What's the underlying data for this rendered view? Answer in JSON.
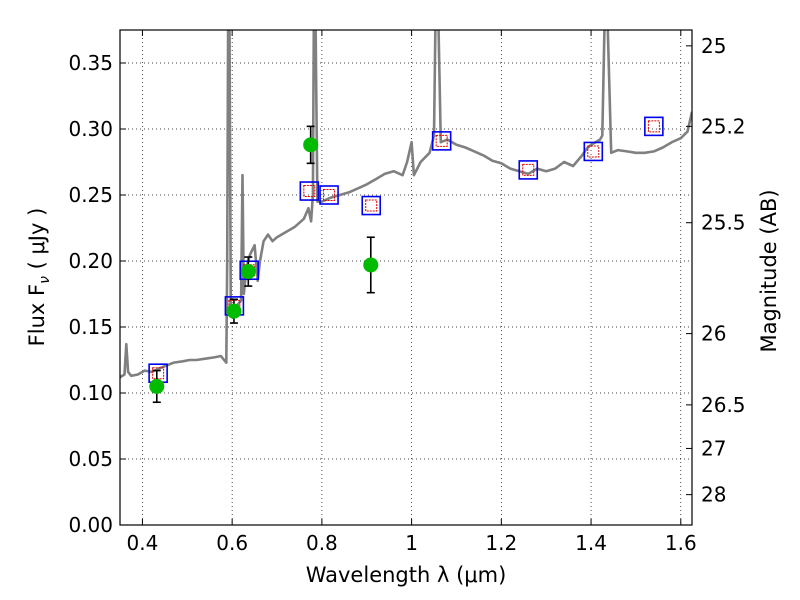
{
  "chart_data": {
    "type": "scatter",
    "xlabel": "Wavelength  λ (μm)",
    "ylabel": "Flux  F",
    "ylabel_sub": "ν",
    "ylabel_unit": "  ( μJy )",
    "ylabel_right": "Magnitude (AB)",
    "xlim": [
      0.35,
      1.625
    ],
    "ylim": [
      0.0,
      0.375
    ],
    "x_ticks": [
      0.4,
      0.6,
      0.8,
      1.0,
      1.2,
      1.4,
      1.6
    ],
    "x_tick_labels": [
      "0.4",
      "0.6",
      "0.8",
      "1",
      "1.2",
      "1.4",
      "1.6"
    ],
    "y_ticks": [
      0.0,
      0.05,
      0.1,
      0.15,
      0.2,
      0.25,
      0.3,
      0.35
    ],
    "y_tick_labels": [
      "0.00",
      "0.05",
      "0.10",
      "0.15",
      "0.20",
      "0.25",
      "0.30",
      "0.35"
    ],
    "right_ticks": [
      {
        "label": "25",
        "flux": 0.363
      },
      {
        "label": "25.2",
        "flux": 0.302
      },
      {
        "label": "25.5",
        "flux": 0.229
      },
      {
        "label": "26",
        "flux": 0.145
      },
      {
        "label": "26.5",
        "flux": 0.091
      },
      {
        "label": "27",
        "flux": 0.058
      },
      {
        "label": "28",
        "flux": 0.023
      }
    ],
    "grid": true,
    "grid_style": "dotted",
    "colors": {
      "template": "#808080",
      "observed": "#00bb00",
      "model_box": "#0000ee",
      "model_inner": "#dd0000",
      "errorbar": "#000000"
    },
    "series": [
      {
        "style": "line",
        "points": [
          [
            0.35,
            0.112
          ],
          [
            0.36,
            0.114
          ],
          [
            0.364,
            0.137
          ],
          [
            0.368,
            0.116
          ],
          [
            0.375,
            0.113
          ],
          [
            0.39,
            0.114
          ],
          [
            0.405,
            0.117
          ],
          [
            0.42,
            0.116
          ],
          [
            0.44,
            0.119
          ],
          [
            0.455,
            0.121
          ],
          [
            0.47,
            0.123
          ],
          [
            0.49,
            0.124
          ],
          [
            0.505,
            0.125
          ],
          [
            0.52,
            0.125
          ],
          [
            0.54,
            0.126
          ],
          [
            0.56,
            0.127
          ],
          [
            0.575,
            0.128
          ],
          [
            0.582,
            0.125
          ],
          [
            0.587,
            0.123
          ],
          [
            0.589,
            0.2
          ],
          [
            0.591,
            0.378
          ],
          [
            0.594,
            0.378
          ],
          [
            0.597,
            0.16
          ],
          [
            0.602,
            0.163
          ],
          [
            0.61,
            0.166
          ],
          [
            0.62,
            0.17
          ],
          [
            0.623,
            0.265
          ],
          [
            0.626,
            0.175
          ],
          [
            0.632,
            0.195
          ],
          [
            0.64,
            0.205
          ],
          [
            0.65,
            0.212
          ],
          [
            0.657,
            0.185
          ],
          [
            0.662,
            0.2
          ],
          [
            0.67,
            0.215
          ],
          [
            0.68,
            0.22
          ],
          [
            0.69,
            0.215
          ],
          [
            0.7,
            0.218
          ],
          [
            0.72,
            0.222
          ],
          [
            0.74,
            0.226
          ],
          [
            0.76,
            0.232
          ],
          [
            0.77,
            0.24
          ],
          [
            0.776,
            0.23
          ],
          [
            0.78,
            0.25
          ],
          [
            0.782,
            0.378
          ],
          [
            0.786,
            0.378
          ],
          [
            0.79,
            0.245
          ],
          [
            0.8,
            0.245
          ],
          [
            0.82,
            0.248
          ],
          [
            0.84,
            0.25
          ],
          [
            0.86,
            0.252
          ],
          [
            0.88,
            0.255
          ],
          [
            0.9,
            0.258
          ],
          [
            0.92,
            0.262
          ],
          [
            0.94,
            0.266
          ],
          [
            0.96,
            0.268
          ],
          [
            0.98,
            0.265
          ],
          [
            0.99,
            0.275
          ],
          [
            1.0,
            0.29
          ],
          [
            1.005,
            0.265
          ],
          [
            1.02,
            0.275
          ],
          [
            1.04,
            0.282
          ],
          [
            1.05,
            0.295
          ],
          [
            1.053,
            0.378
          ],
          [
            1.06,
            0.378
          ],
          [
            1.065,
            0.29
          ],
          [
            1.08,
            0.292
          ],
          [
            1.1,
            0.288
          ],
          [
            1.12,
            0.286
          ],
          [
            1.14,
            0.283
          ],
          [
            1.16,
            0.28
          ],
          [
            1.18,
            0.276
          ],
          [
            1.2,
            0.274
          ],
          [
            1.22,
            0.27
          ],
          [
            1.24,
            0.268
          ],
          [
            1.26,
            0.266
          ],
          [
            1.28,
            0.27
          ],
          [
            1.3,
            0.268
          ],
          [
            1.32,
            0.27
          ],
          [
            1.34,
            0.275
          ],
          [
            1.36,
            0.272
          ],
          [
            1.37,
            0.276
          ],
          [
            1.38,
            0.28
          ],
          [
            1.39,
            0.285
          ],
          [
            1.4,
            0.288
          ],
          [
            1.41,
            0.29
          ],
          [
            1.42,
            0.292
          ],
          [
            1.425,
            0.295
          ],
          [
            1.43,
            0.378
          ],
          [
            1.437,
            0.378
          ],
          [
            1.445,
            0.282
          ],
          [
            1.46,
            0.284
          ],
          [
            1.48,
            0.283
          ],
          [
            1.5,
            0.282
          ],
          [
            1.52,
            0.282
          ],
          [
            1.54,
            0.283
          ],
          [
            1.56,
            0.286
          ],
          [
            1.58,
            0.29
          ],
          [
            1.6,
            0.293
          ],
          [
            1.615,
            0.298
          ],
          [
            1.625,
            0.313
          ]
        ]
      },
      {
        "style": "observed",
        "points": [
          {
            "x": 0.432,
            "y": 0.105,
            "err": 0.012
          },
          {
            "x": 0.604,
            "y": 0.162,
            "err": 0.009
          },
          {
            "x": 0.636,
            "y": 0.192,
            "err": 0.011
          },
          {
            "x": 0.775,
            "y": 0.288,
            "err": 0.014
          },
          {
            "x": 0.909,
            "y": 0.197,
            "err": 0.021
          }
        ]
      },
      {
        "style": "model",
        "points": [
          {
            "x": 0.435,
            "y": 0.115
          },
          {
            "x": 0.605,
            "y": 0.166
          },
          {
            "x": 0.638,
            "y": 0.193
          },
          {
            "x": 0.772,
            "y": 0.253
          },
          {
            "x": 0.816,
            "y": 0.25
          },
          {
            "x": 0.91,
            "y": 0.242
          },
          {
            "x": 1.067,
            "y": 0.291
          },
          {
            "x": 1.26,
            "y": 0.269
          },
          {
            "x": 1.405,
            "y": 0.283
          },
          {
            "x": 1.54,
            "y": 0.302
          }
        ]
      }
    ]
  }
}
